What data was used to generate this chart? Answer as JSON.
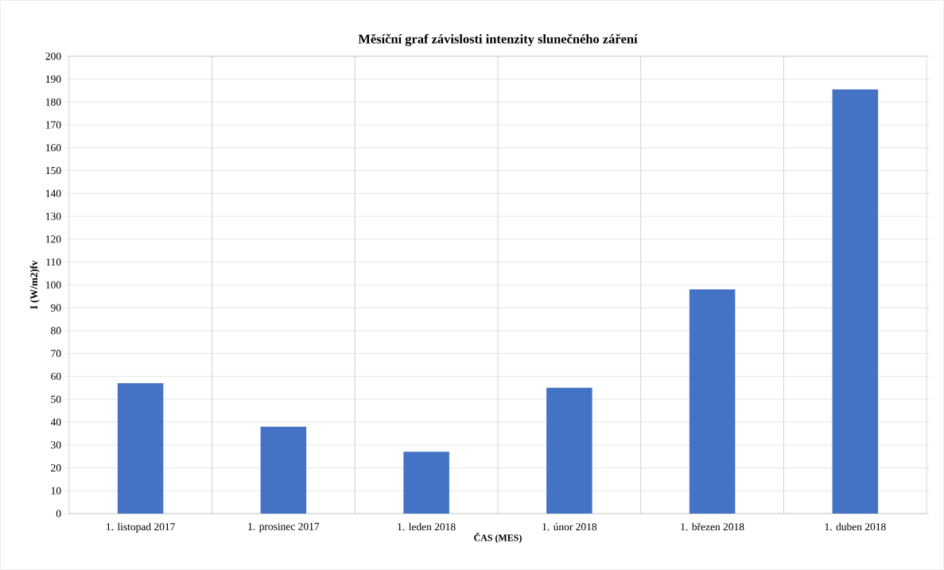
{
  "chart_data": {
    "type": "bar",
    "title": "Měsíční graf závislosti intenzity slunečného záření",
    "xlabel": "ČAS (MES)",
    "ylabel": "I (W/m2)fv",
    "categories": [
      "1. listopad 2017",
      "1. prosinec 2017",
      "1. leden 2018",
      "1. únor 2018",
      "1. březen 2018",
      "1. duben 2018"
    ],
    "values": [
      57,
      38,
      27,
      55,
      98,
      185.5
    ],
    "color": "#4472c4",
    "ylim": [
      0,
      200
    ],
    "yticks": [
      0,
      10,
      20,
      30,
      40,
      50,
      60,
      70,
      80,
      90,
      100,
      110,
      120,
      130,
      140,
      150,
      160,
      170,
      180,
      190,
      200
    ],
    "grid": true
  }
}
